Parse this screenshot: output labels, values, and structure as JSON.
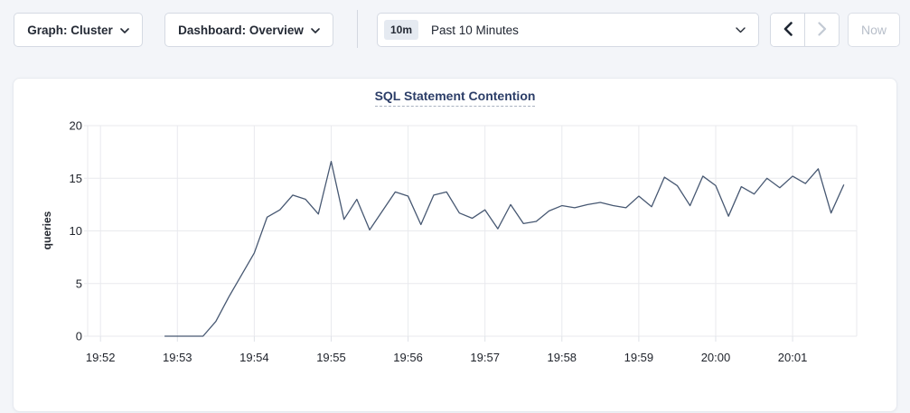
{
  "toolbar": {
    "graph_dropdown": {
      "label": "Graph: Cluster"
    },
    "dashboard_dropdown": {
      "label": "Dashboard: Overview"
    },
    "time_range": {
      "badge": "10m",
      "label": "Past 10 Minutes"
    },
    "now_button": {
      "label": "Now",
      "enabled": false
    },
    "prev_enabled": true,
    "next_enabled": false
  },
  "colors": {
    "line": "#475872",
    "grid": "#e9eaee",
    "tick": "#dfe2e8",
    "title": "#2c3e68",
    "page_background": "#f3f5f9"
  },
  "chart_data": {
    "type": "line",
    "title": "SQL Statement Contention",
    "ylabel": "queries",
    "ylim": [
      0,
      20
    ],
    "yticks": [
      0,
      5,
      10,
      15,
      20
    ],
    "xticklabels": [
      "19:52",
      "19:53",
      "19:54",
      "19:55",
      "19:56",
      "19:57",
      "19:58",
      "19:59",
      "20:00",
      "20:01"
    ],
    "x_axis_range": [
      "19:51:50",
      "20:01:50"
    ],
    "x_domain_seconds": 600,
    "x_first_point_offset_seconds": 60,
    "x_step_seconds": 10,
    "x_start_time": "19:52:50",
    "grid": true,
    "legend": "none",
    "series": [
      {
        "name": "queries",
        "values": [
          0,
          0,
          0,
          0,
          1.4,
          3.7,
          5.8,
          7.9,
          11.3,
          12.0,
          13.4,
          13.0,
          11.6,
          16.6,
          11.1,
          13.0,
          10.1,
          11.9,
          13.7,
          13.3,
          10.6,
          13.4,
          13.7,
          11.7,
          11.2,
          12.0,
          10.2,
          12.5,
          10.7,
          10.9,
          11.9,
          12.4,
          12.2,
          12.5,
          12.7,
          12.4,
          12.2,
          13.3,
          12.3,
          15.1,
          14.3,
          12.4,
          15.2,
          14.3,
          11.4,
          14.2,
          13.5,
          15.0,
          14.1,
          15.2,
          14.5,
          15.9,
          11.7,
          14.4
        ]
      }
    ]
  }
}
